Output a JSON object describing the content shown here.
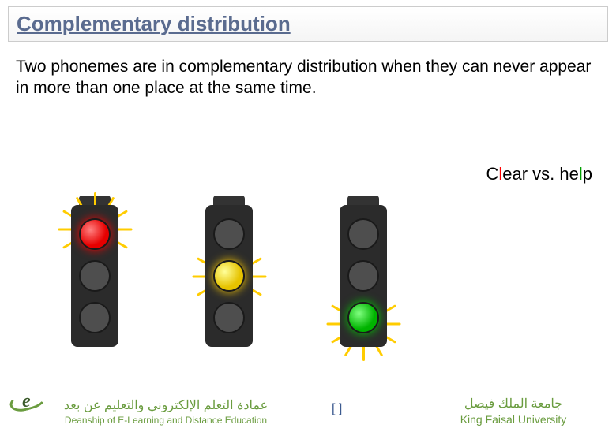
{
  "title": "Complementary distribution",
  "body_text": "Two phonemes are in complementary distribution when they can never appear in more than one place at the same time.",
  "example": {
    "word1": "C",
    "word1_l": "l",
    "word1_end": "ear",
    "vs": " vs. ",
    "word2": "he",
    "word2_l": "l",
    "word2_end": "p"
  },
  "lights": [
    {
      "active": "red",
      "glow_color": "#ffcc00"
    },
    {
      "active": "yellow",
      "glow_color": "#ffcc00"
    },
    {
      "active": "green",
      "glow_color": "#ffcc00"
    }
  ],
  "footer": {
    "dean_ar": "عمادة التعلم الإلكتروني والتعليم عن بعد",
    "dean_en": "Deanship of E-Learning and Distance Education",
    "center": "[     ]",
    "uni_ar": "جامعة الملك فيصل",
    "uni_en": "King Faisal University"
  },
  "colors": {
    "title_color": "#5a6b8f",
    "green_text": "#6a9c3f",
    "red_l": "#ff0000",
    "green_l": "#00a000"
  }
}
